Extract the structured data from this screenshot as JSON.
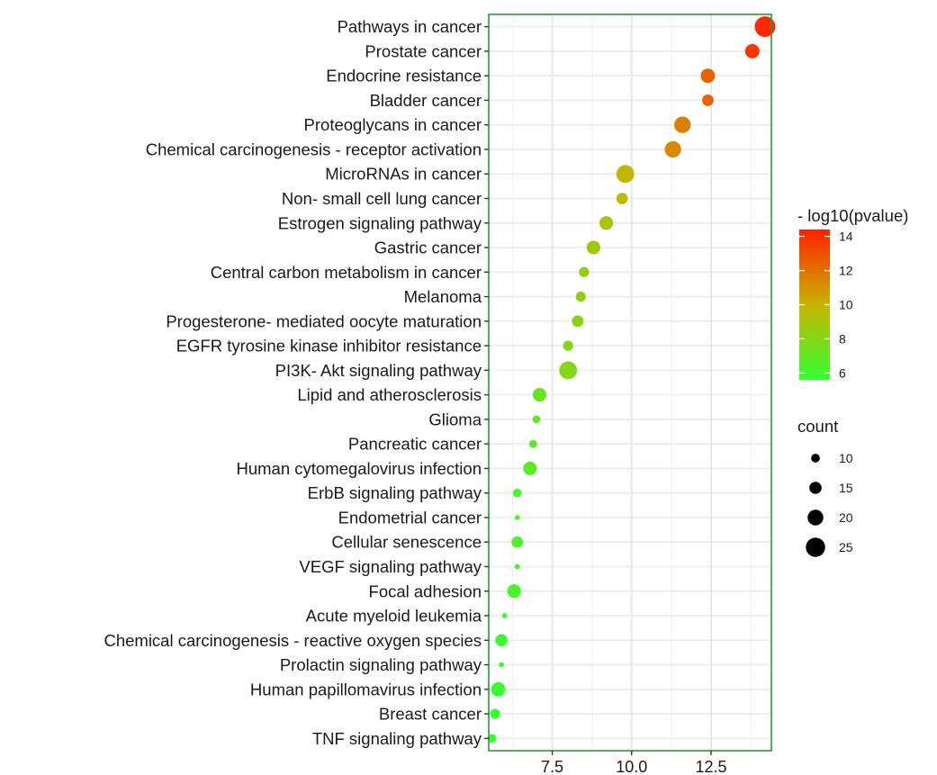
{
  "chart_data": {
    "type": "scatter",
    "title": "",
    "xlabel": "",
    "ylabel": "",
    "xlim": [
      5.5,
      14.4
    ],
    "xticks": [
      7.5,
      10.0,
      12.5
    ],
    "xtick_labels": [
      "7.5",
      "10.0",
      "12.5"
    ],
    "grid": true,
    "colors": {
      "low": "#33ff33",
      "mid": "#c8b400",
      "high": "#ff2200",
      "frame": "#2e9b2e",
      "grid": "#ebebeb"
    },
    "categories": [
      "Pathways in cancer",
      "Prostate cancer",
      "Endocrine resistance",
      "Bladder cancer",
      "Proteoglycans in cancer",
      "Chemical carcinogenesis -  receptor activation",
      "MicroRNAs in cancer",
      "Non- small cell lung cancer",
      "Estrogen signaling pathway",
      "Gastric cancer",
      "Central carbon metabolism in cancer",
      "Melanoma",
      "Progesterone- mediated oocyte maturation",
      "EGFR tyrosine kinase inhibitor resistance",
      "PI3K- Akt signaling pathway",
      "Lipid and atherosclerosis",
      "Glioma",
      "Pancreatic cancer",
      "Human cytomegalovirus infection",
      "ErbB signaling pathway",
      "Endometrial cancer",
      "Cellular senescence",
      "VEGF signaling pathway",
      "Focal adhesion",
      "Acute myeloid leukemia",
      "Chemical carcinogenesis -  reactive oxygen species",
      "Prolactin signaling pathway",
      "Human papillomavirus infection",
      "Breast cancer",
      "TNF signaling pathway"
    ],
    "x": [
      14.2,
      13.8,
      12.4,
      12.4,
      11.6,
      11.3,
      9.8,
      9.7,
      9.2,
      8.8,
      8.5,
      8.4,
      8.3,
      8.0,
      8.0,
      7.1,
      7.0,
      6.9,
      6.8,
      6.4,
      6.4,
      6.4,
      6.4,
      6.3,
      6.0,
      5.9,
      5.9,
      5.8,
      5.7,
      5.6
    ],
    "size": [
      27,
      18,
      18,
      14,
      21,
      21,
      23,
      14,
      17,
      17,
      12,
      12,
      14,
      12,
      23,
      17,
      9,
      9,
      17,
      10,
      5,
      14,
      5,
      17,
      5,
      15,
      5,
      18,
      12,
      10
    ],
    "color_values": [
      14.2,
      13.8,
      12.4,
      12.4,
      11.6,
      11.3,
      9.8,
      9.7,
      9.2,
      8.8,
      8.5,
      8.4,
      8.3,
      8.0,
      8.0,
      7.1,
      7.0,
      6.9,
      6.8,
      6.4,
      6.4,
      6.4,
      6.4,
      6.3,
      6.0,
      5.9,
      5.9,
      5.8,
      5.7,
      5.6
    ],
    "legend_color": {
      "title": "- log10(pvalue)",
      "range": [
        5.6,
        14.4
      ],
      "ticks": [
        6,
        8,
        10,
        12,
        14
      ],
      "tick_labels": [
        "6",
        "8",
        "10",
        "12",
        "14"
      ]
    },
    "legend_size": {
      "title": "count",
      "values": [
        10,
        15,
        20,
        25
      ],
      "labels": [
        "10",
        "15",
        "20",
        "25"
      ]
    },
    "legend_position": "right"
  }
}
